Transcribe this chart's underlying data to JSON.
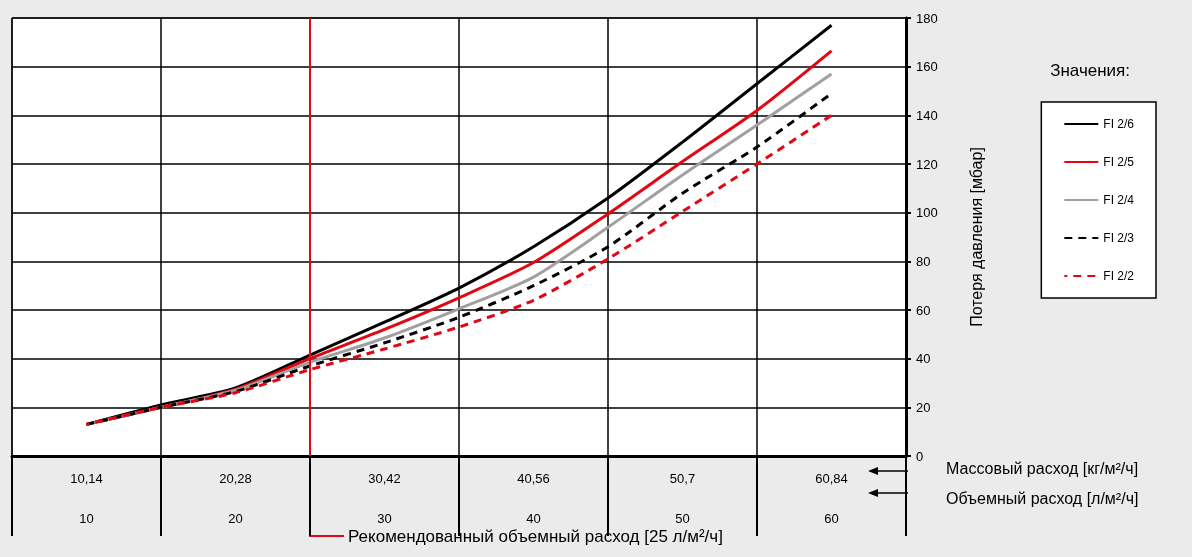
{
  "chart_data": {
    "type": "line",
    "x": [
      10,
      15,
      20,
      25,
      30,
      35,
      40,
      45,
      50,
      55,
      60
    ],
    "series": [
      {
        "name": "FI 2/6",
        "color": "#000000",
        "line_style": "solid",
        "values": [
          13,
          21,
          28,
          41.5,
          55,
          69,
          86,
          106,
          129,
          153,
          177
        ]
      },
      {
        "name": "FI 2/5",
        "color": "#e30613",
        "line_style": "solid",
        "values": [
          13,
          20,
          27.5,
          40,
          52,
          65,
          79.5,
          99.5,
          121,
          142,
          166.5
        ]
      },
      {
        "name": "FI 2/4",
        "color": "#a0a0a0",
        "line_style": "solid",
        "values": [
          13,
          20,
          27,
          38.5,
          48.5,
          60.5,
          73.5,
          94,
          115.5,
          136,
          157
        ]
      },
      {
        "name": "FI 2/3",
        "color": "#000000",
        "line_style": "dashed",
        "values": [
          13,
          20,
          26.5,
          37,
          46.5,
          57,
          70,
          86,
          108,
          127,
          149
        ]
      },
      {
        "name": "FI 2/2",
        "color": "#e30613",
        "line_style": "dashed",
        "values": [
          13,
          20,
          26,
          35.5,
          44,
          53,
          64,
          81,
          100.5,
          120,
          140
        ]
      }
    ],
    "xlabel": "Объемный расход [л/м²/ч]",
    "x2label": "Массовый расход [кг/м²/ч]",
    "ylabel": "Потеря давления [мбар]",
    "legend_title": "Значения:",
    "xlim": [
      5,
      65
    ],
    "xticks": [
      {
        "value": 5,
        "label": null
      },
      10,
      {
        "value": 15,
        "label": null
      },
      20,
      {
        "value": 25,
        "label": null
      },
      30,
      {
        "value": 35,
        "label": null
      },
      40,
      {
        "value": 45,
        "label": null
      },
      50,
      {
        "value": 55,
        "label": null
      },
      60,
      {
        "value": 65,
        "label": null
      }
    ],
    "x2lim": [
      5.07,
      65.91
    ],
    "x2ticks": [
      {
        "value": 10.14,
        "label": "10,14"
      },
      {
        "value": 20.28,
        "label": "20,28"
      },
      {
        "value": 30.42,
        "label": "30,42"
      },
      {
        "value": 40.56,
        "label": "40,56"
      },
      {
        "value": 50.7,
        "label": "50,7"
      },
      {
        "value": 60.84,
        "label": "60,84"
      }
    ],
    "ylim": [
      0,
      180
    ],
    "yticks": [
      0,
      20,
      40,
      60,
      80,
      100,
      120,
      140,
      160,
      180
    ],
    "ref_lines": [
      {
        "axis": "x",
        "value": 25,
        "label": "Рекомендованный объемный расход [25 л/м²/ч]",
        "color": "#e30613"
      }
    ],
    "grid": true,
    "legend": "right",
    "marker": "none"
  }
}
